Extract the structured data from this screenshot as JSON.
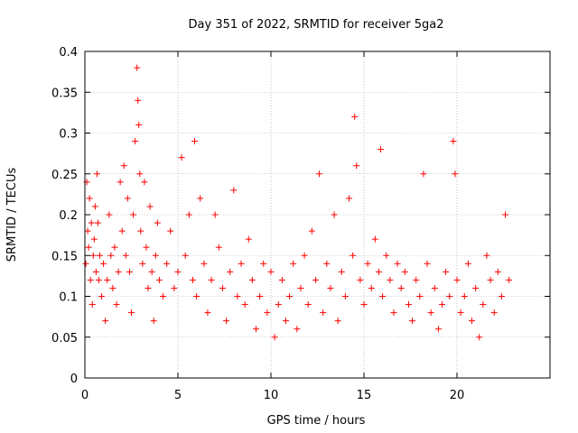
{
  "chart_data": {
    "type": "scatter",
    "title": "Day 351 of 2022, SRMTID for receiver 5ga2",
    "xlabel": "GPS time / hours",
    "ylabel": "SRMTID / TECUs",
    "xlim": [
      0,
      25
    ],
    "ylim": [
      0,
      0.4
    ],
    "grid": true,
    "marker": "+",
    "marker_color": "#ff0000",
    "xticks": [
      0,
      5,
      10,
      15,
      20
    ],
    "xtick_labels": [
      "0",
      "5",
      "10",
      "15",
      "20"
    ],
    "yticks": [
      0,
      0.05,
      0.1,
      0.15,
      0.2,
      0.25,
      0.3,
      0.35,
      0.4
    ],
    "ytick_labels": [
      "0",
      "0.05",
      "0.1",
      "0.15",
      "0.2",
      "0.25",
      "0.3",
      "0.35",
      "0.4"
    ],
    "series": [
      {
        "name": "SRMTID",
        "x": [
          0.05,
          0.1,
          0.15,
          0.2,
          0.25,
          0.3,
          0.35,
          0.4,
          0.45,
          0.5,
          0.55,
          0.6,
          0.65,
          0.7,
          0.75,
          0.8,
          0.9,
          1.0,
          1.1,
          1.2,
          1.3,
          1.4,
          1.5,
          1.6,
          1.7,
          1.8,
          1.9,
          2.0,
          2.1,
          2.2,
          2.3,
          2.4,
          2.5,
          2.6,
          2.7,
          2.8,
          2.85,
          2.9,
          2.95,
          3.0,
          3.1,
          3.2,
          3.3,
          3.4,
          3.5,
          3.6,
          3.7,
          3.8,
          3.9,
          4.0,
          4.2,
          4.4,
          4.6,
          4.8,
          5.0,
          5.2,
          5.4,
          5.6,
          5.8,
          5.9,
          6.0,
          6.2,
          6.4,
          6.6,
          6.8,
          7.0,
          7.2,
          7.4,
          7.6,
          7.8,
          8.0,
          8.2,
          8.4,
          8.6,
          8.8,
          9.0,
          9.2,
          9.4,
          9.6,
          9.8,
          10.0,
          10.2,
          10.4,
          10.6,
          10.8,
          11.0,
          11.2,
          11.4,
          11.6,
          11.8,
          12.0,
          12.2,
          12.4,
          12.6,
          12.8,
          13.0,
          13.2,
          13.4,
          13.6,
          13.8,
          14.0,
          14.2,
          14.4,
          14.5,
          14.6,
          14.8,
          15.0,
          15.2,
          15.4,
          15.6,
          15.8,
          15.9,
          16.0,
          16.2,
          16.4,
          16.6,
          16.8,
          17.0,
          17.2,
          17.4,
          17.6,
          17.8,
          18.0,
          18.2,
          18.4,
          18.6,
          18.8,
          19.0,
          19.2,
          19.4,
          19.6,
          19.8,
          19.9,
          20.0,
          20.2,
          20.4,
          20.6,
          20.8,
          21.0,
          21.2,
          21.4,
          21.6,
          21.8,
          22.0,
          22.2,
          22.4,
          22.6,
          22.8
        ],
        "y": [
          0.14,
          0.24,
          0.18,
          0.16,
          0.22,
          0.12,
          0.19,
          0.09,
          0.15,
          0.17,
          0.21,
          0.13,
          0.25,
          0.19,
          0.12,
          0.15,
          0.1,
          0.14,
          0.07,
          0.12,
          0.2,
          0.15,
          0.11,
          0.16,
          0.09,
          0.13,
          0.24,
          0.18,
          0.26,
          0.15,
          0.22,
          0.13,
          0.08,
          0.2,
          0.29,
          0.38,
          0.34,
          0.31,
          0.25,
          0.18,
          0.14,
          0.24,
          0.16,
          0.11,
          0.21,
          0.13,
          0.07,
          0.15,
          0.19,
          0.12,
          0.1,
          0.14,
          0.18,
          0.11,
          0.13,
          0.27,
          0.15,
          0.2,
          0.12,
          0.29,
          0.1,
          0.22,
          0.14,
          0.08,
          0.12,
          0.2,
          0.16,
          0.11,
          0.07,
          0.13,
          0.23,
          0.1,
          0.14,
          0.09,
          0.17,
          0.12,
          0.06,
          0.1,
          0.14,
          0.08,
          0.13,
          0.05,
          0.09,
          0.12,
          0.07,
          0.1,
          0.14,
          0.06,
          0.11,
          0.15,
          0.09,
          0.18,
          0.12,
          0.25,
          0.08,
          0.14,
          0.11,
          0.2,
          0.07,
          0.13,
          0.1,
          0.22,
          0.15,
          0.32,
          0.26,
          0.12,
          0.09,
          0.14,
          0.11,
          0.17,
          0.13,
          0.28,
          0.1,
          0.15,
          0.12,
          0.08,
          0.14,
          0.11,
          0.13,
          0.09,
          0.07,
          0.12,
          0.1,
          0.25,
          0.14,
          0.08,
          0.11,
          0.06,
          0.09,
          0.13,
          0.1,
          0.29,
          0.25,
          0.12,
          0.08,
          0.1,
          0.14,
          0.07,
          0.11,
          0.05,
          0.09,
          0.15,
          0.12,
          0.08,
          0.13,
          0.1,
          0.2,
          0.12
        ]
      }
    ]
  }
}
